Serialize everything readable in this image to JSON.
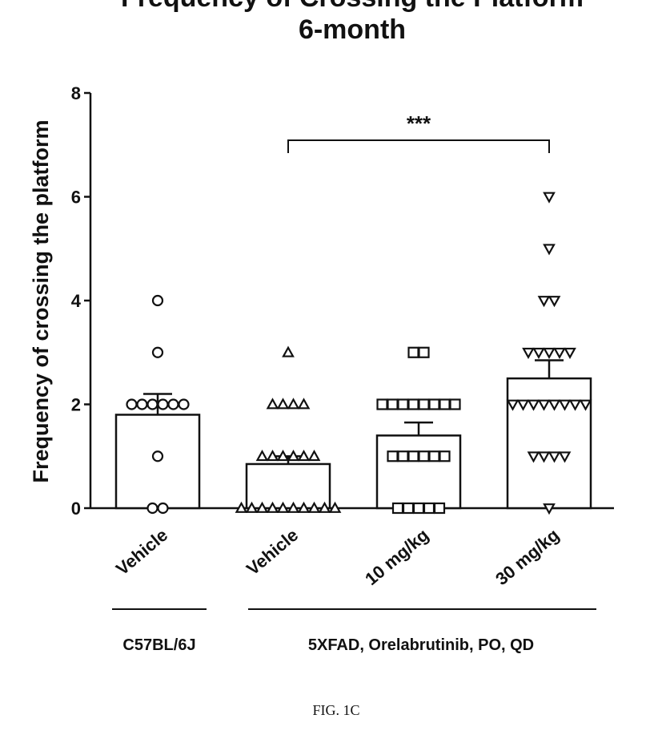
{
  "chart_data": {
    "type": "bar",
    "title_lines": [
      "Frequency of Crossing the Platform",
      "6-month"
    ],
    "ylabel": "Frequency of crossing the platform",
    "xlabel": "",
    "ylim": [
      0,
      8
    ],
    "yticks": [
      0,
      2,
      4,
      6,
      8
    ],
    "grid": false,
    "categories": [
      "Vehicle",
      "Vehicle",
      "10 mg/kg",
      "30 mg/kg"
    ],
    "means": [
      1.8,
      0.85,
      1.4,
      2.5
    ],
    "sem": [
      0.4,
      0.15,
      0.25,
      0.35
    ],
    "markers": [
      "circle",
      "triangle-up",
      "square",
      "triangle-down"
    ],
    "points": [
      [
        4,
        3,
        2,
        2,
        2,
        2,
        2,
        2,
        1,
        0,
        0
      ],
      [
        3,
        2,
        2,
        2,
        2,
        1,
        1,
        1,
        1,
        1,
        1,
        0,
        0,
        0,
        0,
        0,
        0,
        0,
        0,
        0,
        0
      ],
      [
        3,
        3,
        2,
        2,
        2,
        2,
        2,
        2,
        2,
        2,
        1,
        1,
        1,
        1,
        1,
        1,
        0,
        0,
        0,
        0,
        0
      ],
      [
        6,
        5,
        4,
        4,
        3,
        3,
        3,
        3,
        3,
        2,
        2,
        2,
        2,
        2,
        2,
        2,
        2,
        1,
        1,
        1,
        1,
        0
      ]
    ],
    "groups": [
      {
        "label": "C57BL/6J",
        "categories": [
          0
        ]
      },
      {
        "label": "5XFAD, Orelabrutinib, PO, QD",
        "categories": [
          1,
          2,
          3
        ]
      }
    ],
    "significance": {
      "from": 1,
      "to": 3,
      "label": "***"
    },
    "figure_label": "FIG. 1C"
  }
}
